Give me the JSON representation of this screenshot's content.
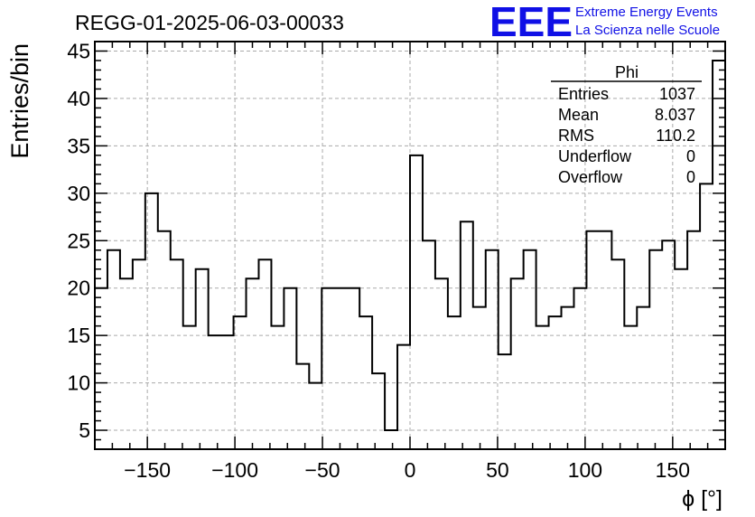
{
  "chart_data": {
    "type": "bar",
    "title": "REGG-01-2025-06-03-00033",
    "xlabel": "ϕ [°]",
    "ylabel": "Entries/bin",
    "xlim": [
      -180,
      180
    ],
    "ylim": [
      3,
      46
    ],
    "x_ticks": [
      -150,
      -100,
      -50,
      0,
      50,
      100,
      150
    ],
    "y_ticks": [
      5,
      10,
      15,
      20,
      25,
      30,
      35,
      40,
      45
    ],
    "grid": true,
    "bin_width": 7.2,
    "bin_low_edges": [
      -180,
      -172.8,
      -165.6,
      -158.4,
      -151.2,
      -144,
      -136.8,
      -129.6,
      -122.4,
      -115.2,
      -108,
      -100.8,
      -93.6,
      -86.4,
      -79.2,
      -72,
      -64.8,
      -57.6,
      -50.4,
      -43.2,
      -36,
      -28.8,
      -21.6,
      -14.4,
      -7.2,
      0,
      7.2,
      14.4,
      21.6,
      28.8,
      36,
      43.2,
      50.4,
      57.6,
      64.8,
      72,
      79.2,
      86.4,
      93.6,
      100.8,
      108,
      115.2,
      122.4,
      129.6,
      136.8,
      144,
      151.2,
      158.4,
      165.6,
      172.8
    ],
    "values": [
      20,
      24,
      21,
      23,
      30,
      26,
      23,
      16,
      22,
      15,
      15,
      17,
      21,
      23,
      16,
      20,
      12,
      10,
      20,
      20,
      20,
      17,
      11,
      5,
      14,
      34,
      25,
      21,
      17,
      27,
      18,
      24,
      13,
      21,
      24,
      16,
      17,
      18,
      20,
      26,
      26,
      23,
      16,
      18,
      24,
      25,
      22,
      26,
      31,
      44
    ],
    "stats_box": {
      "title": "Phi",
      "rows": [
        {
          "label": "Entries",
          "value": "1037"
        },
        {
          "label": "Mean",
          "value": "8.037"
        },
        {
          "label": "RMS",
          "value": "110.2"
        },
        {
          "label": "Underflow",
          "value": "0"
        },
        {
          "label": "Overflow",
          "value": "0"
        }
      ]
    }
  },
  "logo": {
    "text": "EEE",
    "line1": "Extreme Energy Events",
    "line2": "La Scienza nelle Scuole",
    "color": "#1010e6"
  }
}
